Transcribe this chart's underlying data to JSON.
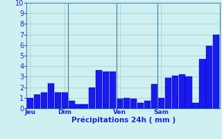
{
  "bars": [
    1.0,
    1.3,
    1.5,
    2.4,
    1.5,
    1.5,
    0.7,
    0.4,
    0.4,
    2.0,
    3.6,
    3.5,
    3.5,
    0.9,
    1.0,
    0.9,
    0.5,
    0.7,
    2.3,
    1.0,
    2.9,
    3.1,
    3.2,
    3.0,
    0.5,
    4.7,
    5.9,
    7.0
  ],
  "day_labels": [
    "Jeu",
    "Dim",
    "Ven",
    "Sam"
  ],
  "day_label_bar_indices": [
    0,
    5,
    13,
    19
  ],
  "vline_bar_indices": [
    6,
    13,
    19
  ],
  "xlabel": "Précipitations 24h ( mm )",
  "ylim": [
    0,
    10
  ],
  "yticks": [
    0,
    1,
    2,
    3,
    4,
    5,
    6,
    7,
    8,
    9,
    10
  ],
  "bar_color": "#1a1aee",
  "bar_edge_color": "#0000aa",
  "background_color": "#cef0f0",
  "grid_color": "#a8c8c8",
  "vline_color": "#4488aa",
  "xlabel_color": "#2222cc",
  "tick_color": "#2222cc",
  "spine_color": "#4488aa"
}
